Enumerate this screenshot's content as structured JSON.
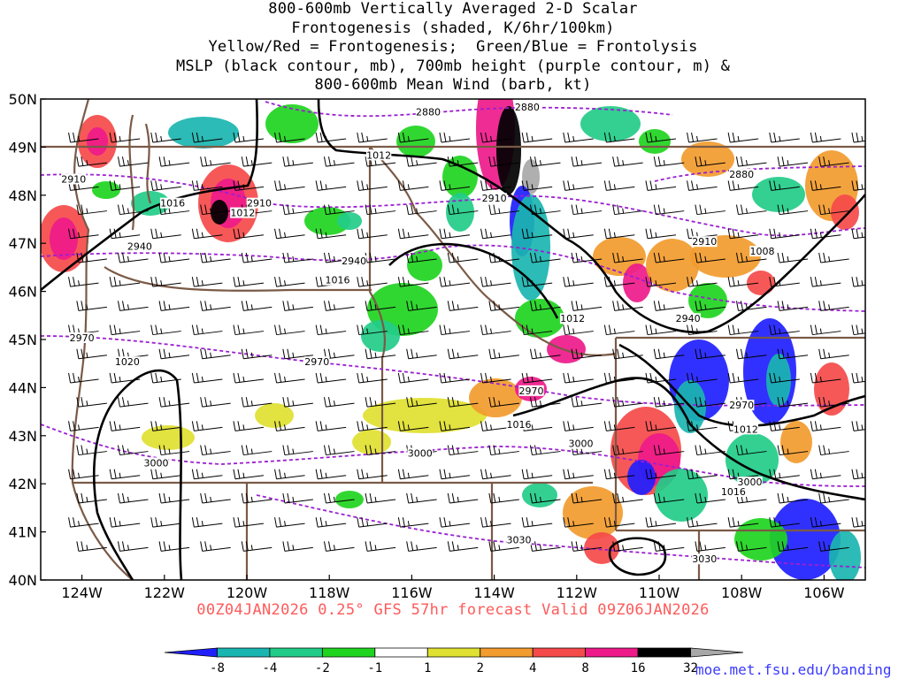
{
  "title_lines": [
    "800-600mb Vertically Averaged 2-D Scalar",
    "Frontogenesis (shaded, K/6hr/100km)",
    "Yellow/Red = Frontogenesis;  Green/Blue = Frontolysis",
    "MSLP (black contour, mb), 700mb height (purple contour, m) &",
    "800-600mb Mean Wind (barb, kt)"
  ],
  "subtitle": "00Z04JAN2026 0.25° GFS 57hr forecast Valid 09Z06JAN2026",
  "credit": "moe.met.fsu.edu/banding",
  "map": {
    "lat_labels": [
      "50N",
      "49N",
      "48N",
      "47N",
      "46N",
      "45N",
      "44N",
      "43N",
      "42N",
      "41N",
      "40N"
    ],
    "lon_labels": [
      "124W",
      "122W",
      "120W",
      "118W",
      "116W",
      "114W",
      "112W",
      "110W",
      "108W",
      "106W"
    ],
    "lat_range": [
      40,
      50
    ],
    "lon_range": [
      -125,
      -105
    ],
    "mslp_labels": [
      {
        "text": "1012",
        "lon": -116.8,
        "lat": 48.8
      },
      {
        "text": "1016",
        "lon": -121.8,
        "lat": 47.8
      },
      {
        "text": "1012",
        "lon": -120.1,
        "lat": 47.6
      },
      {
        "text": "1016",
        "lon": -117.8,
        "lat": 46.2
      },
      {
        "text": "1012",
        "lon": -112.1,
        "lat": 45.4
      },
      {
        "text": "1008",
        "lon": -107.5,
        "lat": 46.8
      },
      {
        "text": "1020",
        "lon": -122.9,
        "lat": 44.5
      },
      {
        "text": "1016",
        "lon": -113.4,
        "lat": 43.2
      },
      {
        "text": "1012",
        "lon": -107.9,
        "lat": 43.1
      },
      {
        "text": "1016",
        "lon": -108.2,
        "lat": 41.8
      }
    ],
    "height_labels": [
      {
        "text": "2880",
        "lon": -115.6,
        "lat": 49.7
      },
      {
        "text": "2880",
        "lon": -113.2,
        "lat": 49.8
      },
      {
        "text": "2880",
        "lon": -108.0,
        "lat": 48.4
      },
      {
        "text": "2910",
        "lon": -124.2,
        "lat": 48.3
      },
      {
        "text": "2910",
        "lon": -119.7,
        "lat": 47.8
      },
      {
        "text": "2910",
        "lon": -114.0,
        "lat": 47.9
      },
      {
        "text": "2910",
        "lon": -108.9,
        "lat": 47.0
      },
      {
        "text": "2940",
        "lon": -122.6,
        "lat": 46.9
      },
      {
        "text": "2940",
        "lon": -117.4,
        "lat": 46.6
      },
      {
        "text": "2940",
        "lon": -109.3,
        "lat": 45.4
      },
      {
        "text": "2970",
        "lon": -124.0,
        "lat": 45.0
      },
      {
        "text": "2970",
        "lon": -118.3,
        "lat": 44.5
      },
      {
        "text": "2970",
        "lon": -113.1,
        "lat": 43.9
      },
      {
        "text": "2970",
        "lon": -108.0,
        "lat": 43.6
      },
      {
        "text": "3000",
        "lon": -122.2,
        "lat": 42.4
      },
      {
        "text": "3000",
        "lon": -115.8,
        "lat": 42.6
      },
      {
        "text": "3000",
        "lon": -111.9,
        "lat": 42.8
      },
      {
        "text": "3000",
        "lon": -107.8,
        "lat": 42.0
      },
      {
        "text": "3030",
        "lon": -113.4,
        "lat": 40.8
      },
      {
        "text": "3030",
        "lon": -108.9,
        "lat": 40.4
      }
    ],
    "barb_rows": [
      49.1,
      48.6,
      48.1,
      47.6,
      47.1,
      46.6,
      46.1,
      45.6,
      45.1,
      44.6,
      44.1,
      43.6,
      43.1,
      42.6,
      42.1,
      41.6,
      41.1,
      40.6
    ],
    "barb_cols": [
      -124.4,
      -123.4,
      -122.4,
      -121.4,
      -120.4,
      -119.4,
      -118.4,
      -117.4,
      -116.4,
      -115.4,
      -114.4,
      -113.4,
      -112.4,
      -111.4,
      -110.4,
      -109.4,
      -108.4,
      -107.4,
      -106.4,
      -105.4
    ]
  },
  "colorbar": {
    "labels": [
      "-8",
      "-4",
      "-2",
      "-1",
      "1",
      "2",
      "4",
      "8",
      "16",
      "32"
    ],
    "colors": [
      "#2020ff",
      "#1ab5b0",
      "#22cc88",
      "#1fd41f",
      "#ffffff",
      "#e0e030",
      "#f29b2e",
      "#f54a4a",
      "#ee1a8a",
      "#000000",
      "#a8a8a8"
    ]
  },
  "colors": {
    "mslp": "#000000",
    "height": "#9b1fd1",
    "border": "#7a5a46",
    "subtitle": "#ff5a5a",
    "credit": "#3a3aff"
  }
}
